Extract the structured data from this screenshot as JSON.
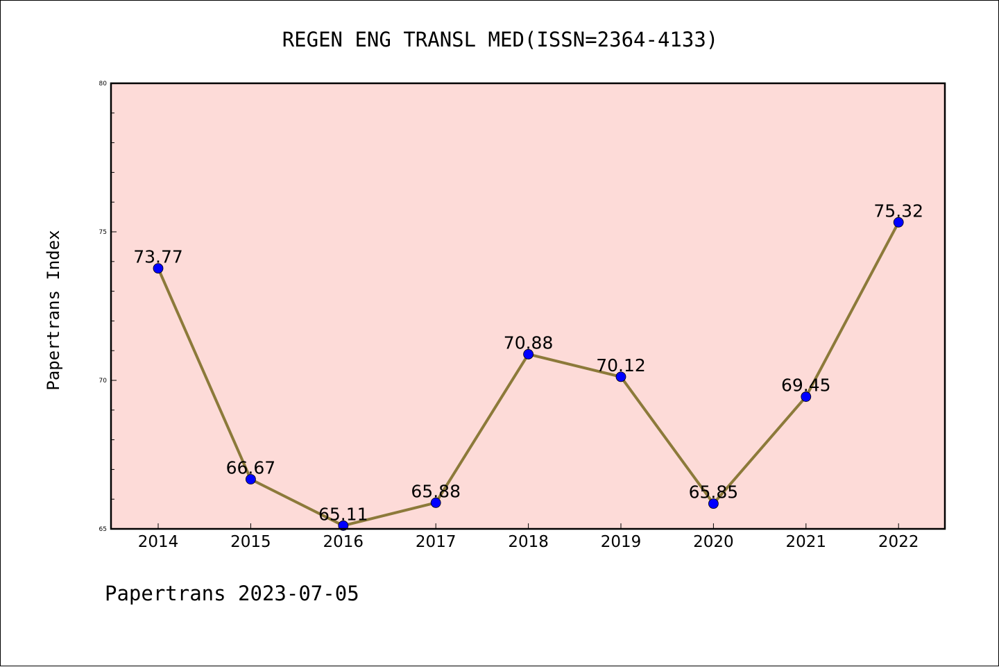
{
  "colors": {
    "plot_background": "#fddbd8",
    "line": "#8c7a3a",
    "marker": "#0000ff",
    "frame": "#000000"
  },
  "chart_data": {
    "type": "line",
    "title": "REGEN ENG TRANSL MED(ISSN=2364-4133)",
    "xlabel": "",
    "ylabel": "Papertrans Index",
    "footer": "Papertrans 2023-07-05",
    "categories": [
      "2014",
      "2015",
      "2016",
      "2017",
      "2018",
      "2019",
      "2020",
      "2021",
      "2022"
    ],
    "series": [
      {
        "values": [
          73.77,
          66.67,
          65.11,
          65.88,
          70.88,
          70.12,
          65.85,
          69.45,
          75.32
        ],
        "labels": [
          "73.77",
          "66.67",
          "65.11",
          "65.88",
          "70.88",
          "70.12",
          "65.85",
          "69.45",
          "75.32"
        ]
      }
    ],
    "ylim": [
      65,
      80
    ],
    "yticks": [
      "65",
      "70",
      "75",
      "80"
    ],
    "grid": false,
    "legend": "none"
  }
}
